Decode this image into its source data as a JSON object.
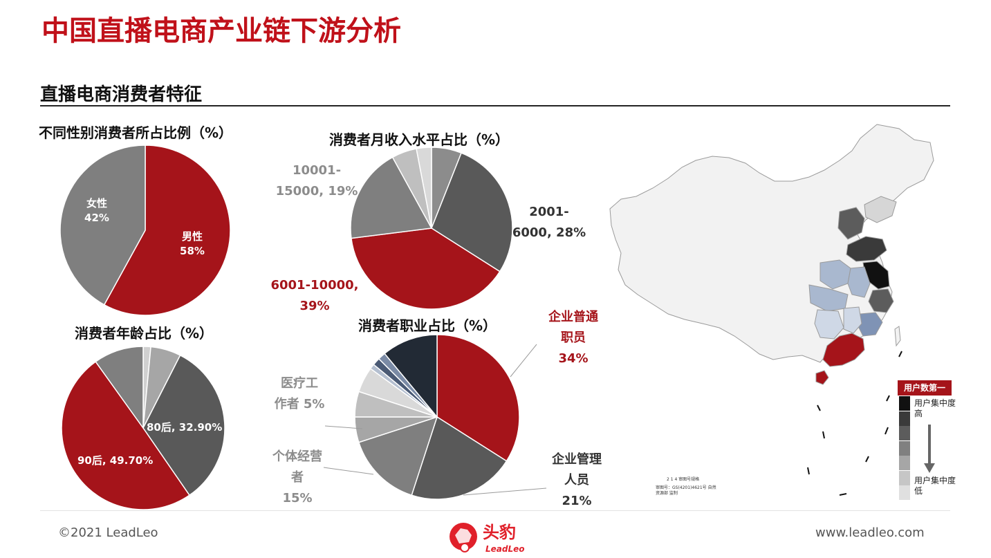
{
  "page": {
    "title": "中国直播电商产业链下游分析",
    "section_title": "直播电商消费者特征",
    "copyright": "©2021 LeadLeo",
    "website": "www.leadleo.com",
    "logo_text": "头豹",
    "logo_sub": "LeadLeo"
  },
  "colors": {
    "accent_red": "#a5141a",
    "dark": "#222a35",
    "grey_dark": "#595959",
    "grey_mid": "#7f7f7f",
    "grey_light": "#bfbfbf"
  },
  "chart_data": [
    {
      "type": "pie",
      "title": "不同性别消费者所占比例（%）",
      "slices": [
        {
          "name": "男性",
          "value": 58,
          "label": "男性\n58%",
          "color": "#a5141a"
        },
        {
          "name": "女性",
          "value": 42,
          "label": "女性\n42%",
          "color": "#7f7f7f"
        }
      ]
    },
    {
      "type": "pie",
      "title": "消费者月收入水平占比（%）",
      "slices": [
        {
          "name": "",
          "value": 6,
          "label": "",
          "color": "#8c8c8c"
        },
        {
          "name": "2001-6000",
          "value": 28,
          "label": "2001-\n6000, 28%",
          "color": "#595959"
        },
        {
          "name": "6001-10000",
          "value": 39,
          "label": "6001-10000,\n39%",
          "color": "#a5141a"
        },
        {
          "name": "10001-15000",
          "value": 19,
          "label": "10001-\n15000, 19%",
          "color": "#7f7f7f"
        },
        {
          "name": "",
          "value": 5,
          "label": "",
          "color": "#bfbfbf"
        },
        {
          "name": "",
          "value": 3,
          "label": "",
          "color": "#d9d9d9"
        }
      ]
    },
    {
      "type": "pie",
      "title": "消费者年龄占比（%）",
      "slices": [
        {
          "name": "",
          "value": 1.5,
          "label": "",
          "color": "#d0d0d0"
        },
        {
          "name": "",
          "value": 6,
          "label": "",
          "color": "#a6a6a6"
        },
        {
          "name": "80后",
          "value": 32.9,
          "label": "80后, 32.90%",
          "color": "#595959"
        },
        {
          "name": "90后",
          "value": 49.7,
          "label": "90后, 49.70%",
          "color": "#a5141a"
        },
        {
          "name": "",
          "value": 9.9,
          "label": "",
          "color": "#7f7f7f"
        }
      ]
    },
    {
      "type": "pie",
      "title": "消费者职业占比（%）",
      "slices": [
        {
          "name": "企业普通职员",
          "value": 34,
          "label": "企业普通\n职员\n34%",
          "color": "#a5141a"
        },
        {
          "name": "企业管理人员",
          "value": 21,
          "label": "企业管理\n人员\n21%",
          "color": "#595959"
        },
        {
          "name": "个体经营者",
          "value": 15,
          "label": "个体经营\n者\n15%",
          "color": "#7f7f7f"
        },
        {
          "name": "",
          "value": 5,
          "label": "",
          "color": "#a6a6a6"
        },
        {
          "name": "",
          "value": 5,
          "label": "",
          "color": "#bfbfbf"
        },
        {
          "name": "医疗工作者",
          "value": 5,
          "label": "医疗工\n作者 5%",
          "color": "#d9d9d9"
        },
        {
          "name": "",
          "value": 1,
          "label": "",
          "color": "#b4bfd0"
        },
        {
          "name": "",
          "value": 1.5,
          "label": "",
          "color": "#4a5a75"
        },
        {
          "name": "",
          "value": 1.5,
          "label": "",
          "color": "#7a8aa5"
        },
        {
          "name": "",
          "value": 11,
          "label": "",
          "color": "#222a35"
        }
      ]
    }
  ],
  "map": {
    "legend_header": "用户数第一",
    "legend_high": "用户集中度高",
    "legend_low": "用户集中度低",
    "legend_colors": [
      "#111111",
      "#3a3a3a",
      "#5c5c5c",
      "#808080",
      "#a6a6a6",
      "#c6c6c6",
      "#e0e0e0"
    ],
    "note1": "2 1 4 审图号规格",
    "note2": "审图号：GS(4201)4621号 自然资源部 监制"
  }
}
